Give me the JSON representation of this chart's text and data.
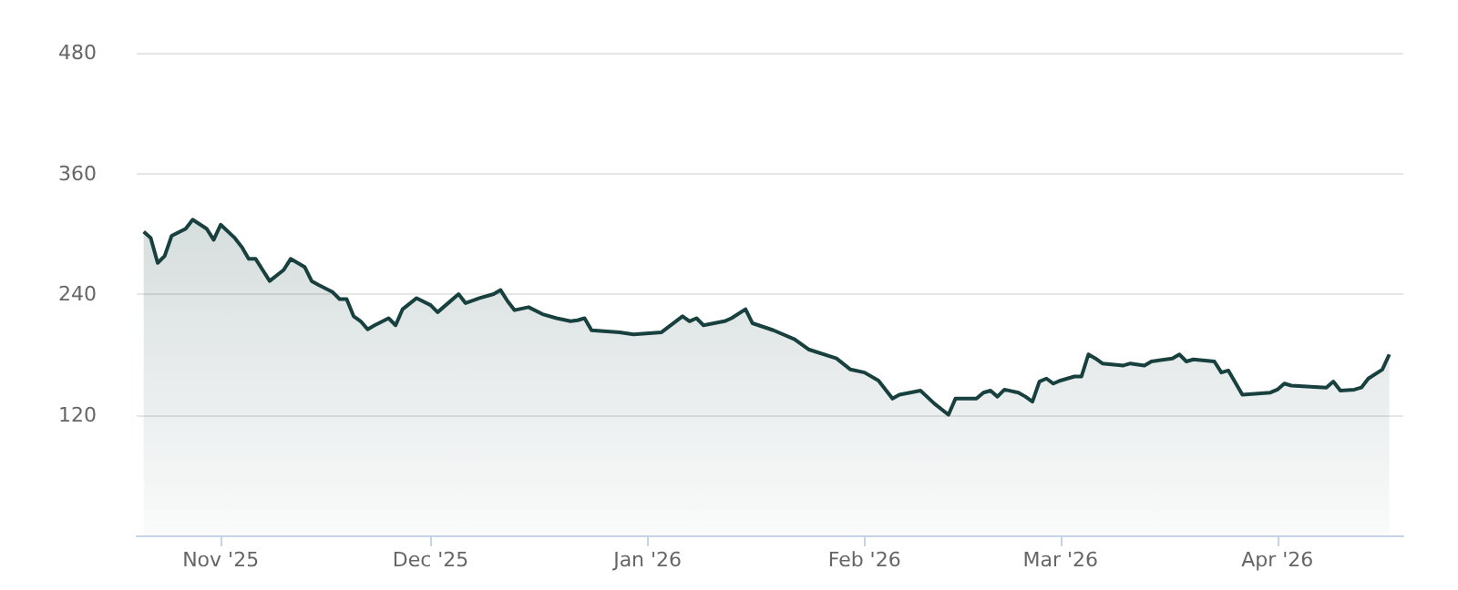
{
  "chart_data": {
    "type": "area",
    "x": [
      "2025-10-21",
      "2025-10-22",
      "2025-10-23",
      "2025-10-24",
      "2025-10-25",
      "2025-10-27",
      "2025-10-28",
      "2025-10-30",
      "2025-10-31",
      "2025-11-01",
      "2025-11-03",
      "2025-11-04",
      "2025-11-05",
      "2025-11-06",
      "2025-11-07",
      "2025-11-08",
      "2025-11-10",
      "2025-11-11",
      "2025-11-13",
      "2025-11-14",
      "2025-11-15",
      "2025-11-17",
      "2025-11-18",
      "2025-11-19",
      "2025-11-20",
      "2025-11-21",
      "2025-11-22",
      "2025-11-23",
      "2025-11-25",
      "2025-11-26",
      "2025-11-27",
      "2025-11-29",
      "2025-12-01",
      "2025-12-02",
      "2025-12-04",
      "2025-12-05",
      "2025-12-06",
      "2025-12-08",
      "2025-12-10",
      "2025-12-11",
      "2025-12-12",
      "2025-12-13",
      "2025-12-15",
      "2025-12-17",
      "2025-12-19",
      "2025-12-21",
      "2025-12-22",
      "2025-12-23",
      "2025-12-24",
      "2025-12-28",
      "2025-12-30",
      "2026-01-03",
      "2026-01-06",
      "2026-01-07",
      "2026-01-08",
      "2026-01-09",
      "2026-01-12",
      "2026-01-13",
      "2026-01-15",
      "2026-01-16",
      "2026-01-19",
      "2026-01-22",
      "2026-01-24",
      "2026-01-28",
      "2026-01-30",
      "2026-02-01",
      "2026-02-03",
      "2026-02-05",
      "2026-02-06",
      "2026-02-09",
      "2026-02-11",
      "2026-02-13",
      "2026-02-14",
      "2026-02-17",
      "2026-02-18",
      "2026-02-19",
      "2026-02-20",
      "2026-02-21",
      "2026-02-23",
      "2026-02-24",
      "2026-02-25",
      "2026-02-26",
      "2026-02-27",
      "2026-02-28",
      "2026-03-01",
      "2026-03-03",
      "2026-03-04",
      "2026-03-05",
      "2026-03-06",
      "2026-03-07",
      "2026-03-10",
      "2026-03-11",
      "2026-03-13",
      "2026-03-14",
      "2026-03-17",
      "2026-03-18",
      "2026-03-19",
      "2026-03-20",
      "2026-03-23",
      "2026-03-24",
      "2026-03-25",
      "2026-03-27",
      "2026-03-31",
      "2026-04-01",
      "2026-04-02",
      "2026-04-03",
      "2026-04-08",
      "2026-04-09",
      "2026-04-10",
      "2026-04-12",
      "2026-04-13",
      "2026-04-14",
      "2026-04-16",
      "2026-04-17"
    ],
    "series": [
      {
        "color": "#17403f",
        "values": [
          302,
          296,
          271,
          278,
          298,
          305,
          314,
          305,
          294,
          309,
          296,
          287,
          275,
          275,
          264,
          253,
          264,
          275,
          267,
          253,
          249,
          242,
          235,
          235,
          218,
          213,
          205,
          209,
          216,
          209,
          225,
          236,
          229,
          222,
          234,
          240,
          231,
          236,
          240,
          244,
          233,
          224,
          227,
          220,
          216,
          213,
          214,
          216,
          204,
          202,
          200,
          202,
          218,
          213,
          216,
          209,
          213,
          216,
          225,
          211,
          204,
          195,
          185,
          176,
          165,
          162,
          154,
          136,
          140,
          144,
          131,
          120,
          136,
          136,
          142,
          144,
          138,
          145,
          142,
          138,
          133,
          153,
          156,
          151,
          154,
          158,
          158,
          180,
          176,
          171,
          169,
          171,
          169,
          173,
          176,
          180,
          173,
          175,
          173,
          162,
          164,
          140,
          142,
          145,
          151,
          149,
          147,
          153,
          144,
          145,
          147,
          156,
          165,
          180
        ]
      }
    ],
    "xlim": [
      "2025-10-20",
      "2026-04-19"
    ],
    "xticks": [
      {
        "value": "2025-11-01",
        "label": "Nov '25"
      },
      {
        "value": "2025-12-01",
        "label": "Dec '25"
      },
      {
        "value": "2026-01-01",
        "label": "Jan '26"
      },
      {
        "value": "2026-02-01",
        "label": "Feb '26"
      },
      {
        "value": "2026-03-01",
        "label": "Mar '26"
      },
      {
        "value": "2026-04-01",
        "label": "Apr '26"
      }
    ],
    "ylim": [
      0,
      480
    ],
    "yticks": [
      120,
      240,
      360,
      480
    ],
    "grid": "y"
  }
}
